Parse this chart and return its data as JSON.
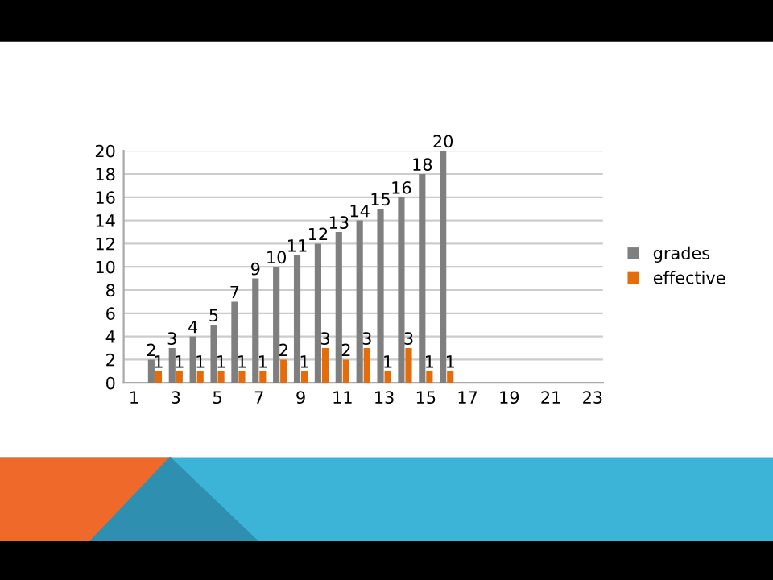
{
  "chart_data": {
    "type": "bar",
    "categories": [
      "1",
      null,
      "3",
      null,
      "5",
      null,
      "7",
      null,
      "9",
      null,
      "11",
      null,
      "13",
      null,
      "15",
      null,
      "17",
      null,
      "19",
      null,
      "21",
      null,
      "23"
    ],
    "series": [
      {
        "name": "grades",
        "color": "#7f7f7f",
        "values": [
          null,
          2,
          3,
          4,
          5,
          7,
          9,
          10,
          11,
          12,
          13,
          14,
          15,
          16,
          18,
          20,
          null,
          null,
          null,
          null,
          null,
          null,
          null
        ]
      },
      {
        "name": "effective",
        "color": "#e46c0a",
        "values": [
          null,
          1,
          1,
          1,
          1,
          1,
          1,
          2,
          1,
          3,
          2,
          3,
          1,
          3,
          1,
          1,
          null,
          null,
          null,
          null,
          null,
          null,
          null
        ]
      }
    ],
    "ylim": [
      0,
      20
    ],
    "yticks": [
      0,
      2,
      4,
      6,
      8,
      10,
      12,
      14,
      16,
      18,
      20
    ],
    "grid": "y",
    "legend": "right",
    "data_labels": true
  }
}
